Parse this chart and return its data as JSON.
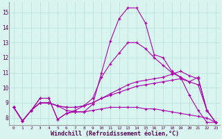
{
  "title": "",
  "xlabel": "Windchill (Refroidissement éolien,°C)",
  "ylabel": "",
  "bg_color": "#d8f5f0",
  "line_color": "#aa00aa",
  "grid_color": "#b8ddd8",
  "xlim": [
    -0.5,
    23.5
  ],
  "ylim": [
    7.5,
    15.7
  ],
  "xticks": [
    0,
    1,
    2,
    3,
    4,
    5,
    6,
    7,
    8,
    9,
    10,
    11,
    12,
    13,
    14,
    15,
    16,
    17,
    18,
    19,
    20,
    21,
    22,
    23
  ],
  "yticks": [
    8,
    9,
    10,
    11,
    12,
    13,
    14,
    15
  ],
  "series": [
    [
      8.7,
      7.8,
      8.5,
      9.3,
      9.3,
      7.9,
      8.3,
      8.4,
      8.4,
      8.9,
      11.0,
      13.1,
      14.6,
      15.3,
      15.3,
      14.3,
      12.2,
      12.0,
      11.1,
      10.7,
      9.5,
      8.5,
      7.7,
      7.7
    ],
    [
      8.7,
      7.8,
      8.5,
      9.3,
      9.3,
      7.9,
      8.3,
      8.5,
      8.8,
      9.3,
      10.7,
      11.6,
      12.3,
      13.0,
      13.0,
      12.6,
      12.0,
      11.5,
      11.0,
      10.7,
      10.4,
      10.7,
      8.5,
      7.7
    ],
    [
      8.7,
      7.8,
      8.5,
      9.0,
      9.0,
      8.8,
      8.7,
      8.7,
      8.8,
      9.0,
      9.3,
      9.6,
      9.9,
      10.2,
      10.4,
      10.5,
      10.6,
      10.7,
      10.9,
      11.1,
      10.8,
      10.6,
      8.5,
      7.7
    ],
    [
      8.7,
      7.8,
      8.5,
      9.0,
      9.0,
      8.8,
      8.7,
      8.7,
      8.8,
      9.0,
      9.3,
      9.5,
      9.7,
      9.9,
      10.1,
      10.2,
      10.3,
      10.4,
      10.5,
      10.6,
      10.4,
      10.2,
      8.5,
      7.7
    ],
    [
      8.7,
      7.8,
      8.5,
      9.0,
      9.0,
      8.8,
      8.5,
      8.4,
      8.4,
      8.5,
      8.6,
      8.7,
      8.7,
      8.7,
      8.7,
      8.6,
      8.6,
      8.5,
      8.4,
      8.3,
      8.2,
      8.1,
      8.0,
      7.7
    ]
  ]
}
